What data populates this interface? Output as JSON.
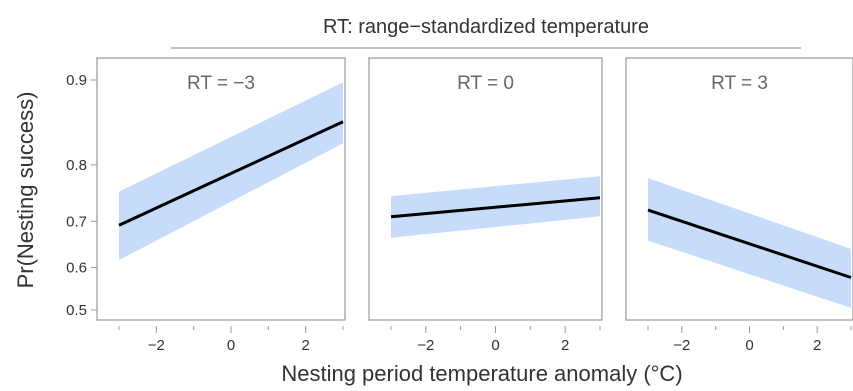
{
  "chart_data": {
    "type": "line",
    "title": "RT: range−standardized temperature",
    "xlabel": "Nesting period temperature anomaly (°C)",
    "ylabel": "Pr(Nesting success)",
    "xlim": [
      -3,
      3
    ],
    "x_ticks": [
      -2,
      0,
      2
    ],
    "x_tick_labels": [
      "−2",
      "0",
      "2"
    ],
    "y_ticks": [
      0.5,
      0.6,
      0.7,
      0.8,
      0.9
    ],
    "y_tick_labels": [
      "0.5",
      "0.6",
      "0.7",
      "0.8",
      "0.9"
    ],
    "grid": false,
    "legend": "none",
    "colors": {
      "line": "#000000",
      "band": "#c6dcfa",
      "axis": "#999999",
      "text": "#333333"
    },
    "panels": [
      {
        "label": "RT = −3",
        "x": [
          -3,
          3
        ],
        "fit": [
          0.692,
          0.858
        ],
        "lower": [
          0.617,
          0.831
        ],
        "upper": [
          0.756,
          0.898
        ]
      },
      {
        "label": "RT = 0",
        "x": [
          -3,
          3
        ],
        "fit": [
          0.709,
          0.745
        ],
        "lower": [
          0.666,
          0.71
        ],
        "upper": [
          0.748,
          0.782
        ]
      },
      {
        "label": "RT = 3",
        "x": [
          -3,
          3
        ],
        "fit": [
          0.722,
          0.577
        ],
        "lower": [
          0.66,
          0.505
        ],
        "upper": [
          0.779,
          0.642
        ]
      }
    ]
  }
}
